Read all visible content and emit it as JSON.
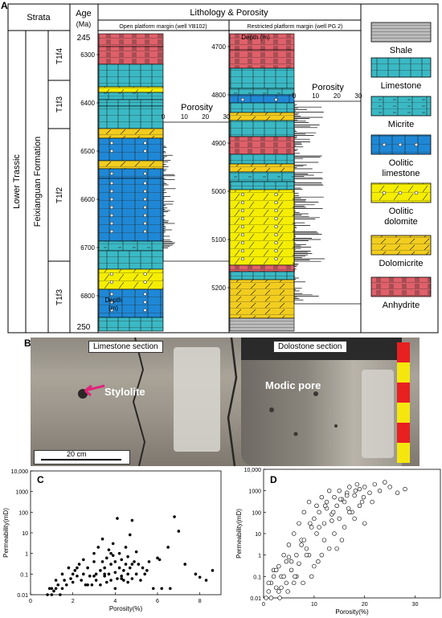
{
  "panel_a": {
    "letter": "A",
    "header": {
      "strata": "Strata",
      "age": "Age",
      "age_unit": "(Ma)",
      "lithology": "Lithology & Porosity",
      "col1": "Open platform margin (well YB102)",
      "col2": "Restricted platform margin (well PG 2)"
    },
    "system": "Lower Trassic",
    "formation": "Feixianguan Formation",
    "members": [
      "T1f4",
      "T1f3",
      "T1f2",
      "T1f3"
    ],
    "age_top": "245",
    "age_bottom": "250",
    "depth_label_1": "Depth",
    "depth_unit_1": "(m)",
    "depth_label_2": "Depth (m)",
    "depths_1": [
      "6300",
      "6400",
      "6500",
      "6600",
      "6700",
      "6800"
    ],
    "depths_2": [
      "4700",
      "4800",
      "4900",
      "5000",
      "5100",
      "5200"
    ],
    "porosity_label": "Porosity",
    "porosity_ticks": [
      "0",
      "10",
      "20",
      "30"
    ],
    "legend": [
      "Shale",
      "Limestone",
      "Micrite",
      "Oolitic limestone",
      "Oolitic dolomite",
      "Dolomicrite",
      "Anhydrite"
    ],
    "legend_colors": [
      "#bbbbbb",
      "#3ab9c4",
      "#3ab9c4",
      "#1f88d6",
      "#f5ee00",
      "#f2cd1e",
      "#e0606a"
    ]
  },
  "panel_b": {
    "letter": "B",
    "label_left": "Limestone section",
    "label_right": "Dolostone section",
    "stylolite": "Stylolite",
    "modic": "Modic pore",
    "scale": "20 cm"
  },
  "panel_c": {
    "letter": "C",
    "xlabel": "Porosity(%)",
    "ylabel": "Permeability(mD)",
    "xticks": [
      "0",
      "2",
      "4",
      "6",
      "8"
    ],
    "yticks": [
      "10,000",
      "1000",
      "100",
      "10",
      "1",
      "0.1",
      "0.01"
    ]
  },
  "panel_d": {
    "letter": "D",
    "xlabel": "Porosity(%)",
    "ylabel": "Permeability(mD)",
    "xticks": [
      "0",
      "10",
      "20",
      "30"
    ],
    "yticks": [
      "10,000",
      "1000",
      "100",
      "10",
      "1",
      "0.1",
      "0.01"
    ]
  },
  "chart_data": [
    {
      "type": "scatter",
      "xlabel": "Porosity(%)",
      "ylabel": "Permeability(mD)",
      "xlim": [
        0,
        9
      ],
      "ylim": [
        0.01,
        10000
      ],
      "yscale": "log",
      "marker": "filled",
      "x": [
        0.8,
        0.9,
        1.0,
        1.1,
        1.2,
        1.2,
        1.3,
        1.4,
        1.5,
        1.5,
        1.6,
        1.7,
        1.8,
        1.9,
        2.0,
        2.0,
        2.1,
        2.2,
        2.3,
        2.4,
        2.5,
        2.5,
        2.6,
        2.7,
        2.8,
        2.9,
        3.0,
        3.0,
        3.1,
        3.1,
        3.2,
        3.3,
        3.3,
        3.4,
        3.4,
        3.5,
        3.5,
        3.6,
        3.6,
        3.7,
        3.7,
        3.8,
        3.8,
        3.9,
        3.9,
        4.0,
        4.0,
        4.0,
        4.1,
        4.1,
        4.2,
        4.2,
        4.3,
        4.3,
        4.4,
        4.4,
        4.5,
        4.5,
        4.6,
        4.6,
        4.7,
        4.7,
        4.8,
        4.8,
        4.9,
        5.0,
        5.0,
        5.1,
        5.2,
        5.3,
        5.5,
        5.6,
        5.8,
        6.0,
        6.2,
        6.5,
        6.8,
        7.0,
        7.3,
        7.8,
        8.0,
        8.3,
        8.6,
        1.0,
        2.2,
        3.0,
        3.8,
        4.3,
        4.8,
        5.4,
        6.1,
        6.6,
        3.5,
        4.6,
        2.7
      ],
      "y": [
        0.01,
        0.02,
        0.01,
        0.015,
        0.02,
        0.05,
        0.03,
        0.01,
        0.1,
        0.02,
        0.05,
        0.03,
        0.2,
        0.06,
        0.1,
        0.04,
        0.15,
        0.08,
        0.3,
        0.05,
        0.1,
        0.5,
        0.03,
        0.2,
        0.08,
        0.03,
        0.4,
        1.0,
        0.1,
        0.05,
        2.0,
        0.15,
        0.03,
        0.4,
        5.0,
        0.08,
        0.2,
        0.6,
        0.04,
        1.5,
        0.1,
        0.3,
        0.05,
        0.8,
        3.0,
        0.12,
        0.4,
        0.02,
        0.06,
        50.0,
        0.2,
        1.0,
        0.08,
        0.5,
        0.15,
        0.05,
        2.0,
        0.3,
        0.1,
        0.7,
        8.0,
        0.2,
        0.06,
        40.0,
        0.4,
        0.1,
        1.2,
        0.3,
        0.05,
        0.2,
        0.15,
        0.4,
        0.02,
        0.6,
        0.02,
        2.0,
        60.0,
        12.0,
        0.3,
        0.1,
        0.07,
        0.05,
        0.15,
        0.02,
        0.2,
        0.08,
        1.0,
        0.06,
        0.3,
        0.1,
        0.5,
        0.02,
        0.1,
        0.04,
        0.03
      ]
    },
    {
      "type": "scatter",
      "xlabel": "Porosity(%)",
      "ylabel": "Permeability(mD)",
      "xlim": [
        0,
        35
      ],
      "ylim": [
        0.01,
        10000
      ],
      "yscale": "log",
      "marker": "open",
      "x": [
        0.5,
        1.0,
        1.5,
        2.0,
        2.5,
        3.0,
        3.5,
        4.0,
        4.5,
        5.0,
        5.5,
        6.0,
        6.5,
        7.0,
        7.5,
        8.0,
        8.5,
        9.0,
        9.5,
        10.0,
        10.5,
        11.0,
        11.5,
        12.0,
        12.5,
        13.0,
        13.5,
        14.0,
        14.5,
        15.0,
        15.5,
        16.0,
        16.5,
        17.0,
        17.5,
        18.0,
        18.5,
        19.0,
        19.5,
        20.0,
        21.0,
        22.0,
        23.0,
        25.0,
        28.0,
        1.0,
        2.0,
        3.0,
        4.0,
        5.0,
        6.0,
        7.0,
        8.0,
        9.0,
        10.0,
        11.0,
        12.0,
        13.0,
        14.0,
        15.0,
        16.0,
        17.0,
        18.0,
        19.0,
        20.0,
        3.5,
        5.5,
        7.5,
        9.5,
        11.5,
        13.5,
        15.5,
        2.5,
        4.5,
        6.5,
        8.5,
        10.5,
        12.5,
        14.5,
        16.5,
        1.5,
        3.2,
        4.8,
        6.2,
        7.8,
        9.2,
        10.8,
        12.2,
        13.8,
        15.2,
        16.8,
        18.2,
        19.8,
        21.5,
        24.0,
        26.5
      ],
      "y": [
        0.01,
        0.02,
        0.05,
        0.1,
        0.03,
        0.3,
        0.1,
        1.0,
        0.5,
        3.0,
        0.2,
        10.0,
        1.0,
        30.0,
        5.0,
        100.0,
        2.0,
        300.0,
        20.0,
        50.0,
        200.0,
        100.0,
        500.0,
        30.0,
        300.0,
        1000.0,
        80.0,
        500.0,
        200.0,
        1000.0,
        400.0,
        300.0,
        800.0,
        1500.0,
        100.0,
        600.0,
        2000.0,
        1200.0,
        300.0,
        1500.0,
        800.0,
        2000.0,
        1000.0,
        1500.0,
        1200.0,
        0.05,
        0.2,
        0.02,
        0.1,
        0.8,
        0.05,
        0.4,
        5.0,
        1.0,
        0.3,
        20.0,
        5.0,
        2.0,
        10.0,
        50.0,
        20.0,
        100.0,
        50.0,
        200.0,
        30.0,
        0.03,
        0.5,
        3.0,
        0.1,
        1.0,
        40.0,
        5.0,
        0.2,
        0.05,
        0.1,
        1.0,
        10.0,
        150.0,
        2.0,
        600.0,
        0.01,
        0.01,
        0.02,
        0.1,
        0.05,
        30.0,
        0.5,
        200.0,
        100.0,
        400.0,
        150.0,
        1000.0,
        500.0,
        300.0,
        2500.0,
        800.0
      ]
    }
  ]
}
